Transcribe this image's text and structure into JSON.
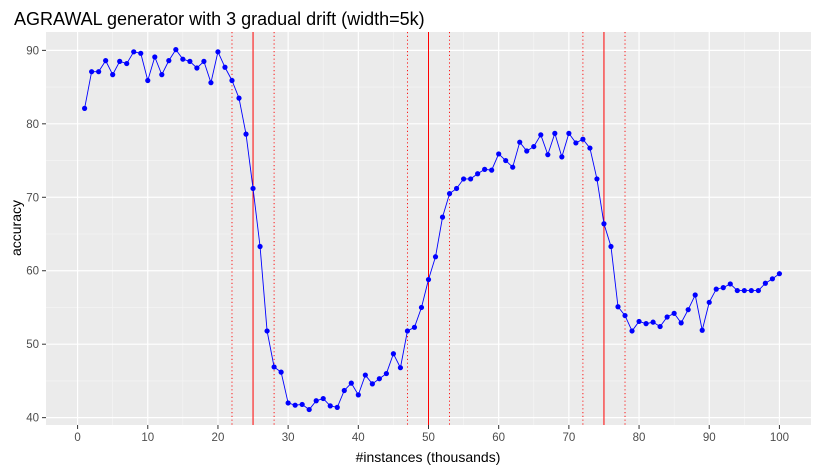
{
  "chart_data": {
    "type": "line",
    "title": "AGRAWAL generator with 3 gradual drift (width=5k)",
    "xlabel": "#instances (thousands)",
    "ylabel": "accuracy",
    "xlim": [
      -4.5,
      104.5
    ],
    "ylim": [
      39,
      92.5
    ],
    "x_ticks": [
      0,
      10,
      20,
      30,
      40,
      50,
      60,
      70,
      80,
      90,
      100
    ],
    "y_ticks": [
      40,
      50,
      60,
      70,
      80,
      90
    ],
    "grid": true,
    "panel_background": "#ebebeb",
    "series": [
      {
        "color": "#0000ff",
        "x": [
          1,
          2,
          3,
          4,
          5,
          6,
          7,
          8,
          9,
          10,
          11,
          12,
          13,
          14,
          15,
          16,
          17,
          18,
          19,
          20,
          21,
          22,
          23,
          24,
          25,
          26,
          27,
          28,
          29,
          30,
          31,
          32,
          33,
          34,
          35,
          36,
          37,
          38,
          39,
          40,
          41,
          42,
          43,
          44,
          45,
          46,
          47,
          48,
          49,
          50,
          51,
          52,
          53,
          54,
          55,
          56,
          57,
          58,
          59,
          60,
          61,
          62,
          63,
          64,
          65,
          66,
          67,
          68,
          69,
          70,
          71,
          72,
          73,
          74,
          75,
          76,
          77,
          78,
          79,
          80,
          81,
          82,
          83,
          84,
          85,
          86,
          87,
          88,
          89,
          90,
          91,
          92,
          93,
          94,
          95,
          96,
          97,
          98,
          99,
          100
        ],
        "values": [
          82.1,
          87.1,
          87.1,
          88.6,
          86.7,
          88.5,
          88.2,
          89.8,
          89.6,
          85.9,
          89.1,
          86.7,
          88.6,
          90.1,
          88.8,
          88.5,
          87.6,
          88.5,
          85.6,
          89.8,
          87.7,
          85.9,
          83.5,
          78.6,
          71.2,
          63.3,
          51.8,
          46.9,
          46.2,
          42.0,
          41.7,
          41.8,
          41.1,
          42.3,
          42.6,
          41.6,
          41.4,
          43.7,
          44.7,
          43.1,
          45.8,
          44.6,
          45.3,
          46.0,
          48.7,
          46.8,
          51.8,
          52.3,
          55.0,
          58.8,
          61.9,
          67.3,
          70.5,
          71.2,
          72.5,
          72.5,
          73.2,
          73.8,
          73.7,
          75.9,
          75.0,
          74.1,
          77.5,
          76.3,
          76.9,
          78.5,
          75.8,
          78.7,
          75.5,
          78.7,
          77.4,
          77.9,
          76.7,
          72.5,
          66.4,
          63.3,
          55.1,
          53.9,
          51.8,
          53.1,
          52.8,
          53.0,
          52.4,
          53.7,
          54.2,
          52.9,
          54.7,
          56.7,
          51.9,
          55.7,
          57.5,
          57.7,
          58.2,
          57.3,
          57.3,
          57.3,
          57.3,
          58.3,
          58.9,
          59.6
        ]
      }
    ],
    "vertical_lines": [
      {
        "x": 22,
        "style": "dotted",
        "color": "#ff0000"
      },
      {
        "x": 25,
        "style": "solid",
        "color": "#ff0000"
      },
      {
        "x": 28,
        "style": "dotted",
        "color": "#ff0000"
      },
      {
        "x": 47,
        "style": "dotted",
        "color": "#ff0000"
      },
      {
        "x": 50,
        "style": "solid",
        "color": "#ff0000"
      },
      {
        "x": 53,
        "style": "dotted",
        "color": "#ff0000"
      },
      {
        "x": 72,
        "style": "dotted",
        "color": "#ff0000"
      },
      {
        "x": 75,
        "style": "solid",
        "color": "#ff0000"
      },
      {
        "x": 78,
        "style": "dotted",
        "color": "#ff0000"
      }
    ]
  }
}
